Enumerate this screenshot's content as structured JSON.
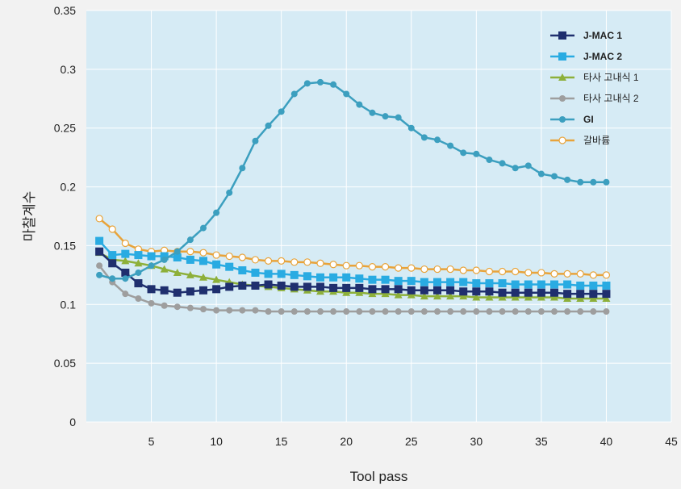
{
  "chart_data": {
    "type": "line",
    "xlabel": "Tool pass",
    "ylabel": "마찰계수",
    "xlim": [
      0,
      45
    ],
    "ylim": [
      0,
      0.35
    ],
    "xticks": [
      "5",
      "10",
      "15",
      "20",
      "25",
      "30",
      "35",
      "40",
      "45"
    ],
    "yticks": [
      "0",
      "0.05",
      "0.1",
      "0.15",
      "0.2",
      "0.25",
      "0.3",
      "0.35"
    ],
    "grid": true,
    "legend_position": "top-right",
    "x": [
      1,
      2,
      3,
      4,
      5,
      6,
      7,
      8,
      9,
      10,
      11,
      12,
      13,
      14,
      15,
      16,
      17,
      18,
      19,
      20,
      21,
      22,
      23,
      24,
      25,
      26,
      27,
      28,
      29,
      30,
      31,
      32,
      33,
      34,
      35,
      36,
      37,
      38,
      39,
      40
    ],
    "series": [
      {
        "name": "J-MAC 1",
        "color": "#1f2f6e",
        "marker": "square",
        "bold": true,
        "values": [
          0.145,
          0.135,
          0.127,
          0.118,
          0.113,
          0.112,
          0.11,
          0.111,
          0.112,
          0.113,
          0.115,
          0.116,
          0.116,
          0.117,
          0.116,
          0.115,
          0.115,
          0.115,
          0.114,
          0.114,
          0.114,
          0.113,
          0.113,
          0.113,
          0.112,
          0.112,
          0.112,
          0.112,
          0.111,
          0.111,
          0.111,
          0.11,
          0.11,
          0.11,
          0.11,
          0.11,
          0.109,
          0.109,
          0.109,
          0.109
        ]
      },
      {
        "name": "J-MAC 2",
        "color": "#29abe2",
        "marker": "square",
        "bold": true,
        "values": [
          0.154,
          0.142,
          0.143,
          0.142,
          0.141,
          0.141,
          0.14,
          0.138,
          0.137,
          0.134,
          0.132,
          0.129,
          0.127,
          0.126,
          0.126,
          0.125,
          0.124,
          0.123,
          0.123,
          0.123,
          0.122,
          0.121,
          0.121,
          0.12,
          0.12,
          0.119,
          0.119,
          0.119,
          0.119,
          0.118,
          0.118,
          0.118,
          0.117,
          0.117,
          0.117,
          0.117,
          0.117,
          0.116,
          0.116,
          0.116
        ]
      },
      {
        "name": "타사 고내식 1",
        "color": "#8db03a",
        "marker": "triangle",
        "bold": false,
        "values": [
          0.144,
          0.138,
          0.137,
          0.135,
          0.133,
          0.13,
          0.127,
          0.125,
          0.123,
          0.121,
          0.119,
          0.117,
          0.116,
          0.115,
          0.114,
          0.113,
          0.112,
          0.111,
          0.111,
          0.11,
          0.11,
          0.109,
          0.109,
          0.108,
          0.108,
          0.107,
          0.107,
          0.107,
          0.107,
          0.106,
          0.106,
          0.106,
          0.106,
          0.106,
          0.106,
          0.106,
          0.105,
          0.105,
          0.105,
          0.105
        ]
      },
      {
        "name": "타사 고내식 2",
        "color": "#9e9e9e",
        "marker": "circle",
        "bold": false,
        "values": [
          0.133,
          0.119,
          0.109,
          0.105,
          0.101,
          0.099,
          0.098,
          0.097,
          0.096,
          0.095,
          0.095,
          0.095,
          0.095,
          0.094,
          0.094,
          0.094,
          0.094,
          0.094,
          0.094,
          0.094,
          0.094,
          0.094,
          0.094,
          0.094,
          0.094,
          0.094,
          0.094,
          0.094,
          0.094,
          0.094,
          0.094,
          0.094,
          0.094,
          0.094,
          0.094,
          0.094,
          0.094,
          0.094,
          0.094,
          0.094
        ]
      },
      {
        "name": "GI",
        "color": "#3c9fbf",
        "marker": "circle",
        "bold": true,
        "values": [
          0.125,
          0.122,
          0.122,
          0.127,
          0.133,
          0.138,
          0.145,
          0.155,
          0.165,
          0.178,
          0.195,
          0.216,
          0.239,
          0.252,
          0.264,
          0.279,
          0.288,
          0.289,
          0.287,
          0.279,
          0.27,
          0.263,
          0.26,
          0.259,
          0.25,
          0.242,
          0.24,
          0.235,
          0.229,
          0.228,
          0.223,
          0.22,
          0.216,
          0.218,
          0.211,
          0.209,
          0.206,
          0.204,
          0.204,
          0.204
        ]
      },
      {
        "name": "갈바륨",
        "color": "#e8a33a",
        "marker": "open-circle",
        "bold": false,
        "values": [
          0.173,
          0.164,
          0.152,
          0.147,
          0.145,
          0.146,
          0.145,
          0.145,
          0.144,
          0.142,
          0.141,
          0.14,
          0.138,
          0.137,
          0.137,
          0.136,
          0.136,
          0.135,
          0.134,
          0.133,
          0.133,
          0.132,
          0.132,
          0.131,
          0.131,
          0.13,
          0.13,
          0.13,
          0.129,
          0.129,
          0.128,
          0.128,
          0.128,
          0.127,
          0.127,
          0.126,
          0.126,
          0.126,
          0.125,
          0.125
        ]
      }
    ]
  },
  "colors": {
    "page_background": "#f2f2f2",
    "plot_background": "#d6ebf5",
    "grid": "#ffffff"
  }
}
